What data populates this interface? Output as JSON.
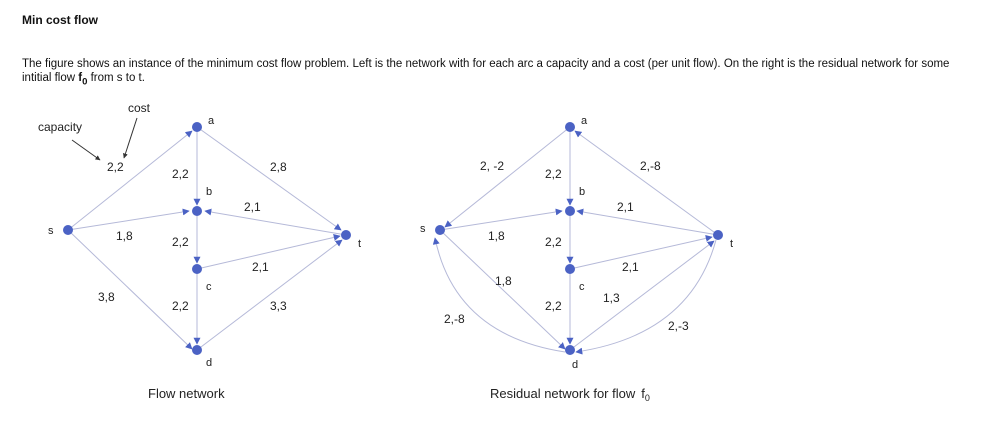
{
  "title": "Min cost flow",
  "description": {
    "part1": "The figure shows an instance of the minimum cost flow problem. Left is the network with for each arc a capacity and a cost (per unit flow). On the right is the residual network for some intitial flow ",
    "flow_symbol": "f",
    "flow_sub": "0",
    "part2": " from s to t."
  },
  "annotations": {
    "capacity": "capacity",
    "cost": "cost"
  },
  "colors": {
    "node": "#4b62c4",
    "edge": "#b5b9d8"
  },
  "flow_network": {
    "caption": "Flow network",
    "nodes": {
      "s": "s",
      "a": "a",
      "b": "b",
      "c": "c",
      "d": "d",
      "t": "t"
    },
    "edges": [
      {
        "from": "s",
        "to": "a",
        "label": "2,2"
      },
      {
        "from": "s",
        "to": "b",
        "label": "1,8"
      },
      {
        "from": "s",
        "to": "d",
        "label": "3,8"
      },
      {
        "from": "a",
        "to": "b",
        "label": "2,2"
      },
      {
        "from": "a",
        "to": "t",
        "label": "2,8"
      },
      {
        "from": "t",
        "to": "b",
        "label": "2,1"
      },
      {
        "from": "b",
        "to": "c",
        "label": "2,2"
      },
      {
        "from": "c",
        "to": "t",
        "label": "2,1"
      },
      {
        "from": "c",
        "to": "d",
        "label": "2,2"
      },
      {
        "from": "d",
        "to": "t",
        "label": "3,3"
      }
    ]
  },
  "residual_network": {
    "caption": "Residual network for flow",
    "caption_symbol": "f",
    "caption_sub": "0",
    "nodes": {
      "s": "s",
      "a": "a",
      "b": "b",
      "c": "c",
      "d": "d",
      "t": "t"
    },
    "edges": [
      {
        "from": "a",
        "to": "s",
        "label": "2, -2"
      },
      {
        "from": "s",
        "to": "b",
        "label": "1,8"
      },
      {
        "from": "s",
        "to": "d",
        "label": "1,8"
      },
      {
        "from": "d",
        "to": "s",
        "label": "2,-8"
      },
      {
        "from": "a",
        "to": "b",
        "label": "2,2"
      },
      {
        "from": "t",
        "to": "a",
        "label": "2,-8"
      },
      {
        "from": "t",
        "to": "b",
        "label": "2,1"
      },
      {
        "from": "b",
        "to": "c",
        "label": "2,2"
      },
      {
        "from": "c",
        "to": "t",
        "label": "2,1"
      },
      {
        "from": "c",
        "to": "d",
        "label": "2,2"
      },
      {
        "from": "d",
        "to": "t",
        "label": "1,3"
      },
      {
        "from": "t",
        "to": "d",
        "label": "2,-3"
      }
    ]
  }
}
